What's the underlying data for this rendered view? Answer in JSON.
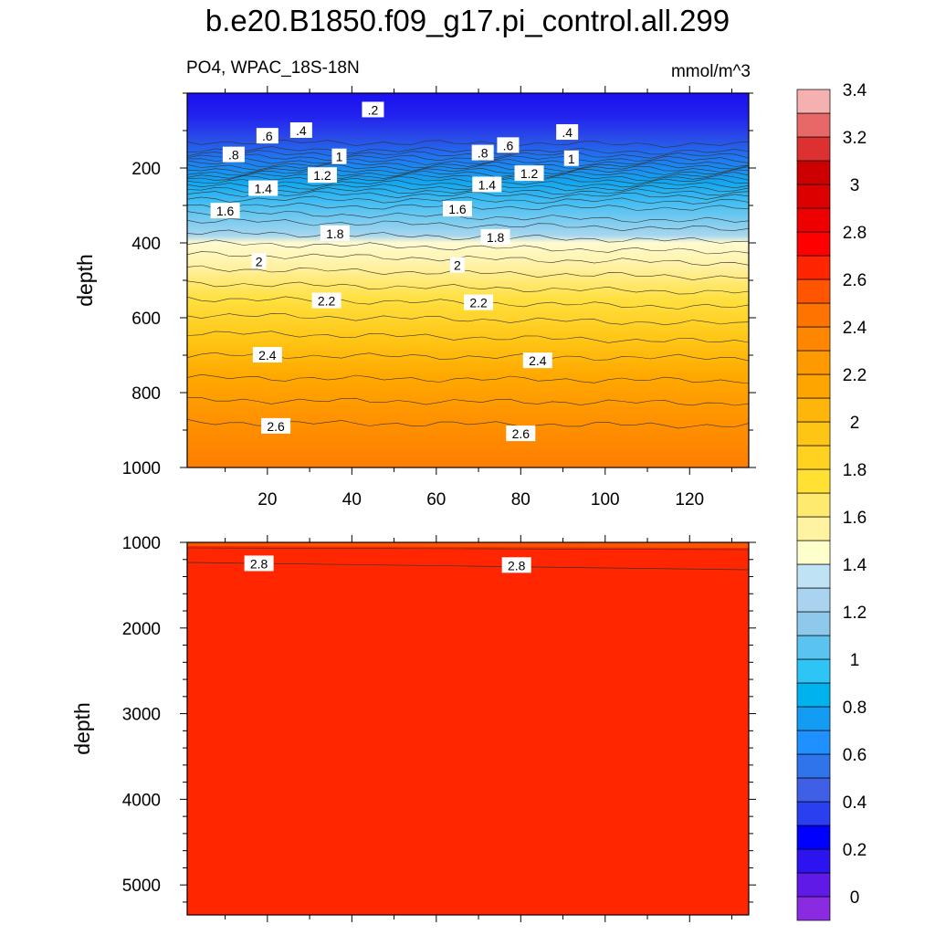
{
  "title": "b.e20.B1850.f09_g17.pi_control.all.299",
  "subtitle_left": "PO4, WPAC_18S-18N",
  "subtitle_right": "mmol/m^3",
  "chart_data": [
    {
      "type": "heatmap",
      "panel": "upper",
      "ylabel": "depth",
      "xlabel": "",
      "xlim": [
        1,
        134
      ],
      "ylim": [
        1000,
        0
      ],
      "x_ticks": [
        20,
        40,
        60,
        80,
        100,
        120
      ],
      "y_ticks": [
        200,
        400,
        600,
        800,
        1000
      ],
      "contour_labels": [
        {
          "text": ".2",
          "x": 45,
          "y": 45
        },
        {
          "text": ".4",
          "x": 28,
          "y": 100
        },
        {
          "text": ".6",
          "x": 20,
          "y": 115
        },
        {
          "text": ".4",
          "x": 91,
          "y": 105
        },
        {
          "text": ".6",
          "x": 77,
          "y": 140
        },
        {
          "text": ".8",
          "x": 12,
          "y": 165
        },
        {
          "text": ".8",
          "x": 71,
          "y": 160
        },
        {
          "text": "1",
          "x": 37,
          "y": 170
        },
        {
          "text": "1",
          "x": 92,
          "y": 175
        },
        {
          "text": "1.2",
          "x": 33,
          "y": 220
        },
        {
          "text": "1.2",
          "x": 82,
          "y": 215
        },
        {
          "text": "1.4",
          "x": 19,
          "y": 255
        },
        {
          "text": "1.4",
          "x": 72,
          "y": 245
        },
        {
          "text": "1.6",
          "x": 10,
          "y": 315
        },
        {
          "text": "1.6",
          "x": 65,
          "y": 310
        },
        {
          "text": "1.8",
          "x": 36,
          "y": 375
        },
        {
          "text": "1.8",
          "x": 74,
          "y": 385
        },
        {
          "text": "2",
          "x": 18,
          "y": 450
        },
        {
          "text": "2",
          "x": 65,
          "y": 460
        },
        {
          "text": "2.2",
          "x": 34,
          "y": 555
        },
        {
          "text": "2.2",
          "x": 70,
          "y": 560
        },
        {
          "text": "2.4",
          "x": 20,
          "y": 700
        },
        {
          "text": "2.4",
          "x": 84,
          "y": 715
        },
        {
          "text": "2.6",
          "x": 22,
          "y": 890
        },
        {
          "text": "2.6",
          "x": 80,
          "y": 910
        }
      ]
    },
    {
      "type": "heatmap",
      "panel": "lower",
      "ylabel": "depth",
      "xlabel": "",
      "xlim": [
        1,
        134
      ],
      "ylim": [
        5350,
        1000
      ],
      "y_ticks": [
        1000,
        2000,
        3000,
        4000,
        5000
      ],
      "contour_labels": [
        {
          "text": "2.8",
          "x": 18,
          "y": 1250
        },
        {
          "text": "2.8",
          "x": 79,
          "y": 1270
        }
      ]
    }
  ],
  "colorbar": {
    "labels": [
      "0",
      "0.2",
      "0.4",
      "0.6",
      "0.8",
      "1",
      "1.2",
      "1.4",
      "1.6",
      "1.8",
      "2",
      "2.2",
      "2.4",
      "2.6",
      "2.8",
      "3",
      "3.2",
      "3.4"
    ],
    "colors": [
      "#8a2be2",
      "#5f1ae8",
      "#2d13f0",
      "#0000ff",
      "#2a3fef",
      "#3e5fe6",
      "#2f74ea",
      "#1e90ff",
      "#129cf4",
      "#00b2ee",
      "#2ec5f6",
      "#5ac3f0",
      "#8ec9ec",
      "#a9d3ee",
      "#bfe3f4",
      "#ffffcc",
      "#fff2a0",
      "#ffea70",
      "#ffe033",
      "#ffd21f",
      "#ffc514",
      "#ffb60a",
      "#ffa500",
      "#ff9900",
      "#ff8600",
      "#ff7400",
      "#ff5500",
      "#ff2500",
      "#ff0000",
      "#ee0000",
      "#dd0000",
      "#cc0000",
      "#dd3030",
      "#e86868",
      "#f5b0b0"
    ]
  }
}
